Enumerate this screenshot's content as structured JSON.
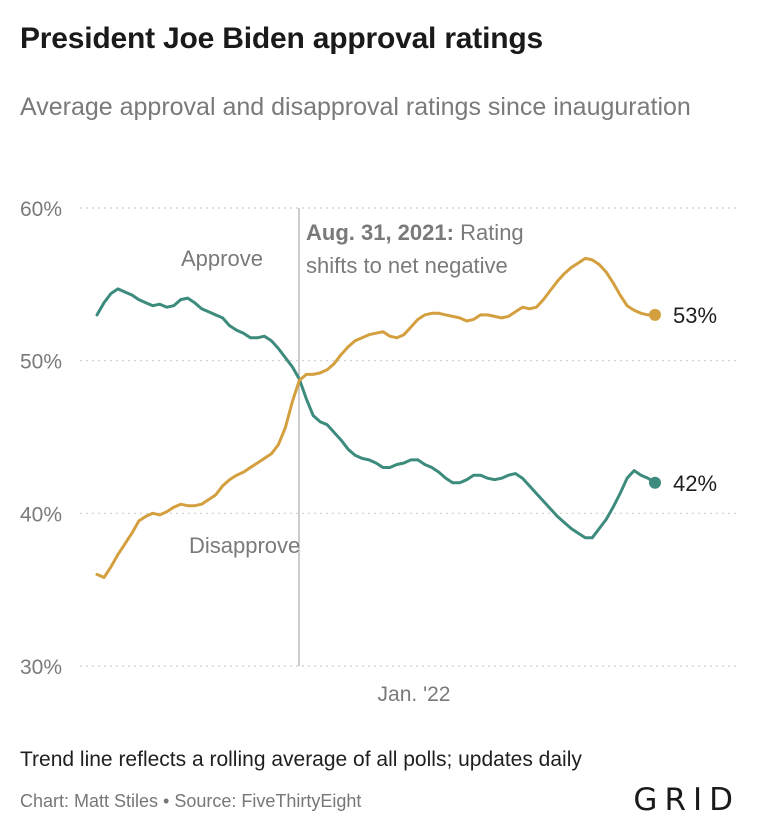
{
  "title": "President Joe Biden approval ratings",
  "subtitle": "Average approval and disapproval ratings since inauguration",
  "footnote": "Trend line reflects a rolling average of all polls; updates daily",
  "credit": "Chart: Matt Stiles • Source: FiveThirtyEight",
  "logo": "GRID",
  "chart_data": {
    "type": "line",
    "ylim": [
      30,
      60
    ],
    "ytick_labels": [
      "60%",
      "50%",
      "40%",
      "30%"
    ],
    "yticks": [
      60,
      50,
      40,
      30
    ],
    "xtick_labels": [
      "Jan. '22"
    ],
    "grid": true,
    "annotation": {
      "bold": "Aug. 31, 2021:",
      "line1_rest": " Rating",
      "line2": "shifts to net negative"
    },
    "series": [
      {
        "name": "Approve",
        "color": "#3d8b7d",
        "end_label": "42%",
        "values": [
          53,
          53.8,
          54.4,
          54.7,
          54.5,
          54.3,
          54,
          53.8,
          53.6,
          53.7,
          53.5,
          53.6,
          54,
          54.1,
          53.8,
          53.4,
          53.2,
          53,
          52.8,
          52.3,
          52,
          51.8,
          51.5,
          51.5,
          51.6,
          51.3,
          50.8,
          50.2,
          49.6,
          48.8,
          47.5,
          46.4,
          46,
          45.8,
          45.3,
          44.8,
          44.2,
          43.8,
          43.6,
          43.5,
          43.3,
          43,
          43,
          43.2,
          43.3,
          43.5,
          43.5,
          43.2,
          43,
          42.7,
          42.3,
          42,
          42,
          42.2,
          42.5,
          42.5,
          42.3,
          42.2,
          42.3,
          42.5,
          42.6,
          42.3,
          41.8,
          41.3,
          40.8,
          40.3,
          39.8,
          39.4,
          39,
          38.7,
          38.4,
          38.4,
          39,
          39.6,
          40.4,
          41.3,
          42.3,
          42.8,
          42.5,
          42.3,
          42
        ]
      },
      {
        "name": "Disapprove",
        "color": "#d4a03f",
        "end_label": "53%",
        "values": [
          36,
          35.8,
          36.5,
          37.3,
          38,
          38.7,
          39.5,
          39.8,
          40,
          39.9,
          40.1,
          40.4,
          40.6,
          40.5,
          40.5,
          40.6,
          40.9,
          41.2,
          41.8,
          42.2,
          42.5,
          42.7,
          43,
          43.3,
          43.6,
          43.9,
          44.5,
          45.6,
          47.3,
          48.7,
          49.1,
          49.1,
          49.2,
          49.4,
          49.8,
          50.4,
          50.9,
          51.3,
          51.5,
          51.7,
          51.8,
          51.9,
          51.6,
          51.5,
          51.7,
          52.2,
          52.7,
          53,
          53.1,
          53.1,
          53,
          52.9,
          52.8,
          52.6,
          52.7,
          53,
          53,
          52.9,
          52.8,
          52.9,
          53.2,
          53.5,
          53.4,
          53.5,
          54,
          54.6,
          55.2,
          55.7,
          56.1,
          56.4,
          56.7,
          56.6,
          56.3,
          55.8,
          55.1,
          54.3,
          53.6,
          53.3,
          53.1,
          53,
          53
        ]
      }
    ]
  }
}
